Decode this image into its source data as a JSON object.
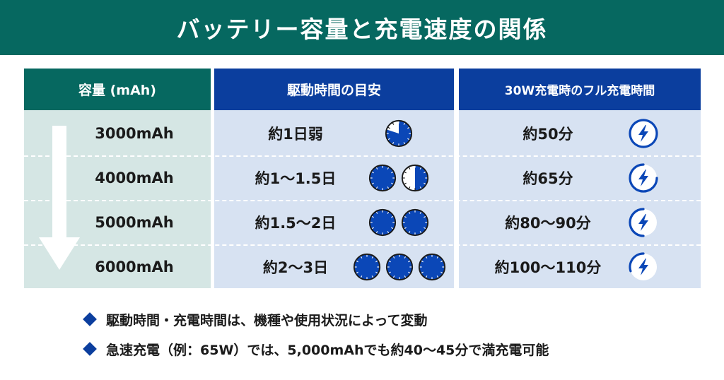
{
  "title": "バッテリー容量と充電速度の関係",
  "headers": {
    "capacity": "容量 (mAh)",
    "drive_time": "駆動時間の目安",
    "charge_time": "30W充電時のフル充電時間"
  },
  "rows": [
    {
      "capacity": "3000mAh",
      "drive_time": "約1日弱",
      "drive_days": 0.8,
      "charge_time": "約50分",
      "charge_level": 1.0
    },
    {
      "capacity": "4000mAh",
      "drive_time": "約1〜1.5日",
      "drive_days": 1.5,
      "charge_time": "約65分",
      "charge_level": 0.75
    },
    {
      "capacity": "5000mAh",
      "drive_time": "約1.5〜2日",
      "drive_days": 2.0,
      "charge_time": "約80〜90分",
      "charge_level": 0.5
    },
    {
      "capacity": "6000mAh",
      "drive_time": "約2〜3日",
      "drive_days": 3.0,
      "charge_time": "約100〜110分",
      "charge_level": 0.3
    }
  ],
  "notes": [
    "駆動時間・充電時間は、機種や使用状況によって変動",
    "急速充電（例：65W）では、5,000mAhでも約40〜45分で満充電可能"
  ],
  "icons": {
    "clock": "clock-pie-icon",
    "bolt": "lightning-bolt-icon",
    "arrow": "down-arrow-icon",
    "bullet": "diamond-bullet-icon"
  },
  "colors": {
    "title_bg": "#066860",
    "capacity_header": "#066860",
    "capacity_body": "#d5e6e4",
    "blue_header": "#0b3e9e",
    "blue_body": "#d7e2f2",
    "clock_fill": "#0b47b7"
  }
}
